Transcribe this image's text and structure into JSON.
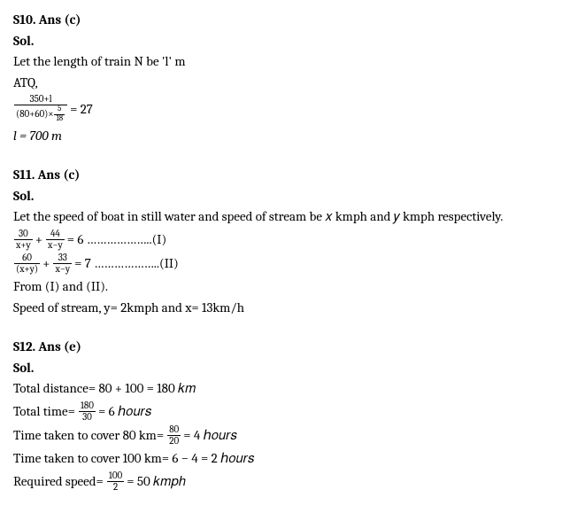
{
  "s10": {
    "heading": "S10. Ans (c)",
    "sol": "Sol.",
    "lines": [
      "Let the length of train N be 'l' m",
      "ATQ,"
    ],
    "eq1_num": "350+l",
    "eq1_den_left": "(80+60)×",
    "eq1_inner_num": "5",
    "eq1_inner_den": "18",
    "eq1_rhs": "= 27",
    "result": "l = 700 m"
  },
  "s11": {
    "heading": "S11. Ans (c)",
    "sol": "Sol.",
    "intro": "Let the speed of boat in still water and speed of stream be 𝑥 kmph and 𝑦 kmph respectively.",
    "eq1_f1_num": "30",
    "eq1_f1_den": "x+y",
    "plus": "+",
    "eq1_f2_num": "44",
    "eq1_f2_den": "x−y",
    "eq1_rhs": "= 6   ………………..(I)",
    "eq2_f1_num": "60",
    "eq2_f1_den": "(x+y)",
    "eq2_f2_num": "33",
    "eq2_f2_den": "x−y",
    "eq2_rhs": "= 7 ………………..(II)",
    "from": "From (I) and (II).",
    "result": "Speed of stream, y= 2kmph and x= 13km/h"
  },
  "s12": {
    "heading": "S12. Ans (e)",
    "sol": "Sol.",
    "l1": "Total distance= 80 + 100 = 180 𝑘𝑚",
    "l2_pre": "Total time=",
    "l2_num": "180",
    "l2_den": "30",
    "l2_post": "= 6 ℎ𝑜𝑢𝑟𝑠",
    "l3_pre": "Time taken to cover 80 km=",
    "l3_num": "80",
    "l3_den": "20",
    "l3_post": "= 4 ℎ𝑜𝑢𝑟𝑠",
    "l4": "Time taken to cover 100 km= 6 − 4 = 2 ℎ𝑜𝑢𝑟𝑠",
    "l5_pre": "Required speed=",
    "l5_num": "100",
    "l5_den": "2",
    "l5_post": "= 50 𝑘𝑚𝑝ℎ"
  }
}
